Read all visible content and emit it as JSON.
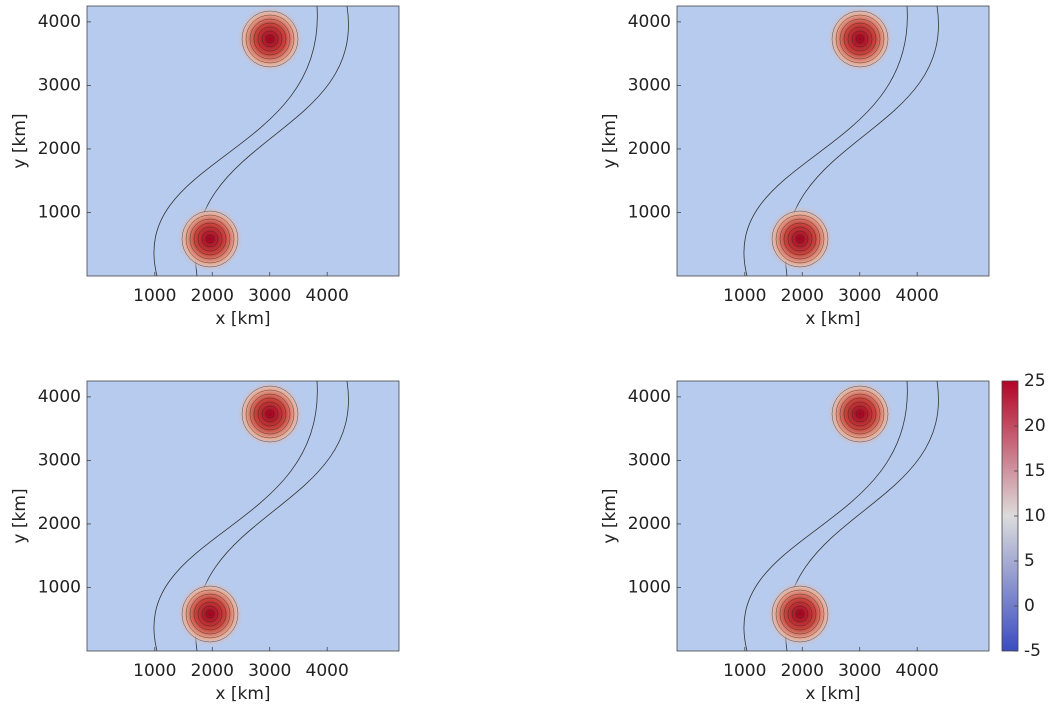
{
  "chart_data": [
    {
      "type": "contour",
      "xlabel": "x [km]",
      "ylabel": "y [km]",
      "xlim": [
        -180,
        5250
      ],
      "ylim": [
        0,
        4250
      ],
      "xticks": [
        1000,
        2000,
        3000,
        4000
      ],
      "yticks": [
        1000,
        2000,
        3000,
        4000
      ]
    },
    {
      "type": "contour",
      "xlabel": "x [km]",
      "ylabel": "y [km]",
      "xlim": [
        -180,
        5250
      ],
      "ylim": [
        0,
        4250
      ],
      "xticks": [
        1000,
        2000,
        3000,
        4000
      ],
      "yticks": [
        1000,
        2000,
        3000,
        4000
      ]
    },
    {
      "type": "contour",
      "xlabel": "x [km]",
      "ylabel": "y [km]",
      "xlim": [
        -180,
        5250
      ],
      "ylim": [
        0,
        4250
      ],
      "xticks": [
        1000,
        2000,
        3000,
        4000
      ],
      "yticks": [
        1000,
        2000,
        3000,
        4000
      ]
    },
    {
      "type": "contour",
      "xlabel": "x [km]",
      "ylabel": "y [km]",
      "xlim": [
        -180,
        5250
      ],
      "ylim": [
        0,
        4250
      ],
      "xticks": [
        1000,
        2000,
        3000,
        4000
      ],
      "yticks": [
        1000,
        2000,
        3000,
        4000
      ],
      "colorbar": {
        "lim": [
          -5,
          25
        ],
        "ticks": [
          -5,
          0,
          5,
          10,
          15,
          20,
          25
        ],
        "colors": [
          "#3b4cc0",
          "#dcdcdc",
          "#b40426"
        ]
      }
    }
  ]
}
